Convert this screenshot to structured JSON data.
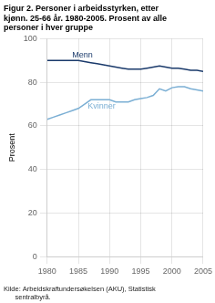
{
  "chart_data": {
    "type": "line",
    "title": "Figur 2. Personer i arbeidsstyrken, etter\nkjønn. 25-66 år. 1980-2005. Prosent av alle\npersoner i hver gruppe",
    "ylabel": "Prosent",
    "source": "Kilde: Arbeidskraftundersøkelsen (AKU), Statistisk\n      sentralbyrå.",
    "x": [
      1980,
      1981,
      1982,
      1983,
      1984,
      1985,
      1986,
      1987,
      1988,
      1989,
      1990,
      1991,
      1992,
      1993,
      1994,
      1995,
      1996,
      1997,
      1998,
      1999,
      2000,
      2001,
      2002,
      2003,
      2004,
      2005
    ],
    "series": [
      {
        "name": "Menn",
        "color": "#1a3a6b",
        "values": [
          90,
          90,
          90,
          90,
          90,
          90,
          89.5,
          89,
          88.5,
          88,
          87.5,
          87,
          86.5,
          86,
          86,
          86,
          86.5,
          87,
          87.5,
          87,
          86.5,
          86.5,
          86,
          85.5,
          85.5,
          85
        ]
      },
      {
        "name": "Kvinner",
        "color": "#7bafd4",
        "values": [
          63,
          64,
          65,
          66,
          67,
          68,
          70,
          72,
          72,
          72,
          72,
          71,
          71,
          71,
          72,
          72.5,
          73,
          74,
          77,
          76,
          77.5,
          78,
          78,
          77,
          76.5,
          76
        ]
      }
    ],
    "annotations": [
      {
        "text": "Menn",
        "x": 1984,
        "y": 91.5,
        "color": "#1a3a6b"
      },
      {
        "text": "Kvinner",
        "x": 1986.5,
        "y": 68.0,
        "color": "#7bafd4"
      }
    ],
    "xlim": [
      1980,
      2005
    ],
    "xticks": [
      1980,
      1985,
      1990,
      1995,
      2000,
      2005
    ],
    "ylim": [
      0,
      100
    ],
    "yticks": [
      0,
      20,
      40,
      60,
      80,
      100
    ],
    "grid": true
  }
}
